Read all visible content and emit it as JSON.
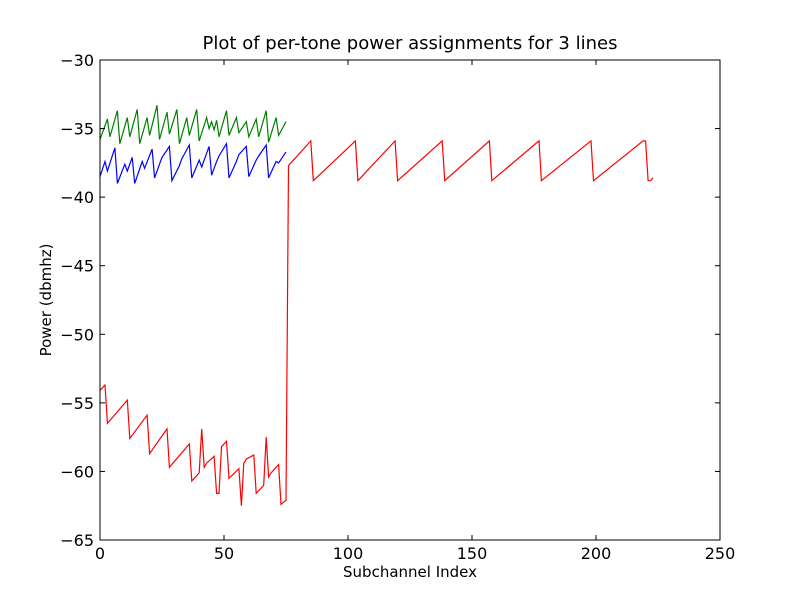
{
  "chart_data": {
    "type": "line",
    "title": "Plot of per-tone power assignments for 3 lines",
    "xlabel": "Subchannel Index",
    "ylabel": "Power (dbmhz)",
    "xlim": [
      0,
      250
    ],
    "ylim": [
      -65,
      -30
    ],
    "xticks": [
      0,
      50,
      100,
      150,
      200,
      250
    ],
    "yticks": [
      -65,
      -60,
      -55,
      -50,
      -45,
      -40,
      -35,
      -30
    ],
    "x_tick_labels": [
      "0",
      "50",
      "100",
      "150",
      "200",
      "250"
    ],
    "y_tick_labels": [
      "−65",
      "−60",
      "−55",
      "−50",
      "−45",
      "−40",
      "−35",
      "−30"
    ],
    "grid": false,
    "legend": null,
    "series": [
      {
        "color": "#008000",
        "x": [
          0,
          3,
          4,
          7,
          8,
          11,
          12,
          15,
          16,
          19,
          20,
          23,
          24,
          27,
          28,
          31,
          32,
          35,
          36,
          39,
          40,
          43,
          44,
          45,
          46,
          47,
          48,
          51,
          52,
          55,
          56,
          59,
          60,
          63,
          64,
          67,
          68,
          71,
          72,
          75
        ],
        "y": [
          -35.8,
          -34.3,
          -35.6,
          -33.7,
          -36.1,
          -34.2,
          -35.6,
          -33.6,
          -36.1,
          -34.2,
          -35.5,
          -33.3,
          -35.8,
          -33.8,
          -35.4,
          -33.6,
          -36.1,
          -34.2,
          -35.5,
          -33.6,
          -35.9,
          -34.2,
          -35.0,
          -34.5,
          -35.1,
          -34.4,
          -35.6,
          -33.7,
          -35.5,
          -34.2,
          -35.3,
          -34.5,
          -35.6,
          -34.3,
          -35.6,
          -33.7,
          -36.0,
          -34.2,
          -35.5,
          -34.5
        ]
      },
      {
        "color": "#0000ff",
        "x": [
          0,
          2,
          3,
          6,
          7,
          10,
          11,
          13,
          14,
          17,
          18,
          21,
          22,
          24,
          25,
          28,
          29,
          32,
          33,
          36,
          37,
          40,
          41,
          44,
          45,
          47,
          48,
          51,
          52,
          55,
          56,
          59,
          60,
          63,
          64,
          67,
          68,
          71,
          72,
          75
        ],
        "y": [
          -38.5,
          -37.4,
          -38.1,
          -36.4,
          -39.0,
          -37.6,
          -38.1,
          -37.1,
          -39.0,
          -37.4,
          -37.9,
          -36.5,
          -38.6,
          -37.6,
          -37.1,
          -36.3,
          -38.8,
          -37.7,
          -37.2,
          -36.2,
          -38.6,
          -37.3,
          -37.8,
          -36.3,
          -38.4,
          -37.4,
          -37.0,
          -36.1,
          -38.6,
          -37.4,
          -36.9,
          -36.3,
          -38.5,
          -37.3,
          -37.0,
          -36.2,
          -38.6,
          -37.4,
          -37.5,
          -36.7
        ]
      },
      {
        "color": "#ff0000",
        "x": [
          0,
          2,
          3,
          11,
          12,
          19,
          20,
          27,
          28,
          36,
          37,
          40,
          41,
          42,
          43,
          46,
          47,
          48,
          49,
          51,
          52,
          56,
          57,
          58,
          59,
          62,
          63,
          66,
          67,
          68,
          69,
          72,
          73,
          75,
          76,
          85,
          86,
          103,
          104,
          119,
          120,
          138,
          139,
          157,
          158,
          177,
          178,
          198,
          199,
          219,
          220,
          221,
          222,
          223
        ],
        "y": [
          -54.1,
          -53.7,
          -56.5,
          -54.8,
          -57.6,
          -55.9,
          -58.7,
          -56.9,
          -59.7,
          -58.0,
          -60.7,
          -60.1,
          -56.9,
          -59.7,
          -59.4,
          -58.9,
          -61.6,
          -61.6,
          -58.2,
          -57.8,
          -60.5,
          -59.8,
          -62.5,
          -59.4,
          -59.1,
          -58.8,
          -61.6,
          -61.0,
          -57.5,
          -60.4,
          -60.1,
          -59.5,
          -62.4,
          -62.1,
          -37.7,
          -35.9,
          -38.8,
          -35.9,
          -38.8,
          -35.9,
          -38.8,
          -35.9,
          -38.8,
          -35.9,
          -38.8,
          -35.9,
          -38.8,
          -35.9,
          -38.8,
          -35.9,
          -35.9,
          -38.8,
          -38.8,
          -38.6
        ]
      }
    ]
  }
}
